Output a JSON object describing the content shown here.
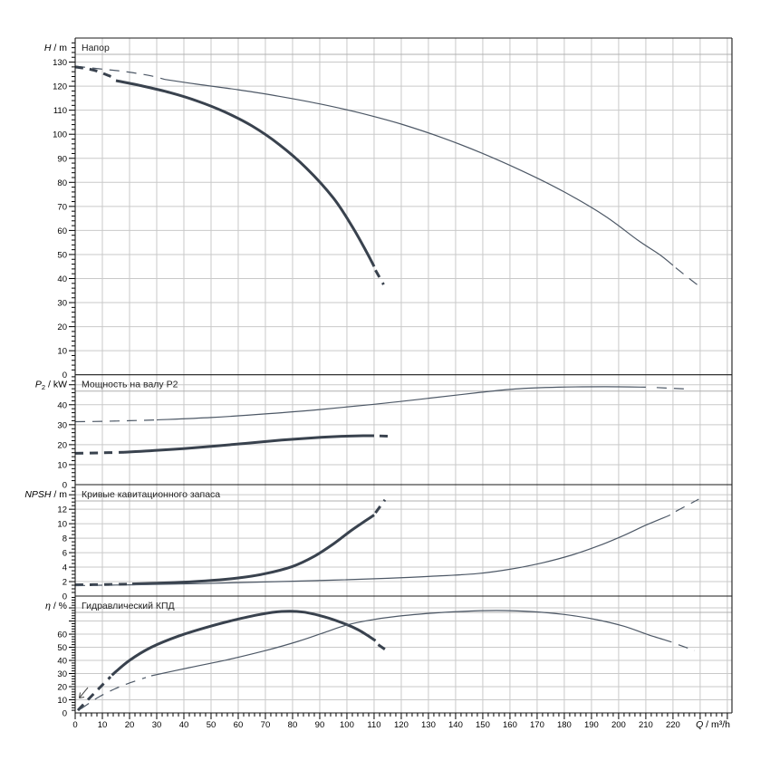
{
  "colors": {
    "background": "#ffffff",
    "curve_thick": "#39424e",
    "curve_thin": "#4d5866",
    "grid": "#c9c9c9",
    "strip_line": "#b0b0b0",
    "border": "#1a1a1a",
    "text": "#000000",
    "title_text": "#222222"
  },
  "xaxis": {
    "label": {
      "var": "Q",
      "rest": " / m³/h"
    },
    "ticks": [
      0,
      10,
      20,
      30,
      40,
      50,
      60,
      70,
      80,
      90,
      100,
      110,
      120,
      130,
      140,
      150,
      160,
      170,
      180,
      190,
      200,
      210,
      220
    ],
    "major_step": 10,
    "minor_step": 2,
    "range": [
      0,
      241.7
    ]
  },
  "chart_data": [
    {
      "type": "line",
      "panel": "head",
      "title": "Напор",
      "ylabel": {
        "var": "H",
        "rest": " / m"
      },
      "ylim": [
        0,
        140
      ],
      "yticks": [
        0,
        10,
        20,
        30,
        40,
        50,
        60,
        70,
        80,
        90,
        100,
        110,
        120,
        130
      ],
      "ytick_step": 10,
      "minor_step": 2,
      "series": [
        {
          "name": "head-curve-thin",
          "weight": "thin",
          "segments": [
            {
              "style": "dashed",
              "points": [
                [
                  0,
                  128.3
                ],
                [
                  9,
                  127.2
                ],
                [
                  18,
                  126.1
                ],
                [
                  27,
                  124.5
                ],
                [
                  33,
                  122.8
                ]
              ]
            },
            {
              "style": "solid",
              "points": [
                [
                  33,
                  122.8
                ],
                [
                  45,
                  120.8
                ],
                [
                  60,
                  118.5
                ],
                [
                  75,
                  115.8
                ],
                [
                  90,
                  112.6
                ],
                [
                  105,
                  108.8
                ],
                [
                  120,
                  104.2
                ],
                [
                  135,
                  98.6
                ],
                [
                  150,
                  92
                ],
                [
                  165,
                  84.5
                ],
                [
                  180,
                  76
                ],
                [
                  195,
                  66
                ],
                [
                  207,
                  56
                ],
                [
                  215,
                  50
                ],
                [
                  220,
                  45.5
                ]
              ]
            },
            {
              "style": "dashed",
              "points": [
                [
                  221,
                  44.5
                ],
                [
                  226,
                  40
                ],
                [
                  230,
                  36.5
                ]
              ]
            }
          ]
        },
        {
          "name": "head-curve-thick",
          "weight": "thick",
          "segments": [
            {
              "style": "dashed",
              "points": [
                [
                  0,
                  128
                ],
                [
                  7,
                  126.6
                ],
                [
                  14,
                  123.6
                ]
              ]
            },
            {
              "style": "solid",
              "points": [
                [
                  15,
                  122.3
                ],
                [
                  25,
                  120
                ],
                [
                  35,
                  117.3
                ],
                [
                  45,
                  113.8
                ],
                [
                  55,
                  109.3
                ],
                [
                  65,
                  103.5
                ],
                [
                  75,
                  95.8
                ],
                [
                  85,
                  86
                ],
                [
                  95,
                  73.5
                ],
                [
                  102,
                  61.5
                ],
                [
                  107,
                  51.5
                ],
                [
                  110,
                  45
                ]
              ]
            },
            {
              "style": "dashed",
              "points": [
                [
                  110.5,
                  43.5
                ],
                [
                  113.5,
                  37.5
                ]
              ]
            }
          ]
        }
      ]
    },
    {
      "type": "line",
      "panel": "power",
      "title": "Мощность на валу P2",
      "ylabel": {
        "var": "P",
        "sub": "2",
        "rest": " / kW"
      },
      "ylim": [
        0,
        55
      ],
      "yticks": [
        0,
        10,
        20,
        30,
        40
      ],
      "ytick_step": 10,
      "minor_step": 2,
      "series": [
        {
          "name": "power-curve-thin",
          "weight": "thin",
          "segments": [
            {
              "style": "dashed",
              "points": [
                [
                  0,
                  31.5
                ],
                [
                  10,
                  31.7
                ],
                [
                  20,
                  32
                ],
                [
                  30,
                  32.4
                ]
              ]
            },
            {
              "style": "solid",
              "points": [
                [
                  30,
                  32.4
                ],
                [
                  50,
                  33.6
                ],
                [
                  70,
                  35.4
                ],
                [
                  90,
                  37.6
                ],
                [
                  110,
                  40.2
                ],
                [
                  130,
                  43.2
                ],
                [
                  148,
                  46
                ],
                [
                  162,
                  47.9
                ],
                [
                  178,
                  48.8
                ],
                [
                  195,
                  49
                ],
                [
                  210,
                  48.8
                ]
              ]
            },
            {
              "style": "dashed",
              "points": [
                [
                  214,
                  48.6
                ],
                [
                  226,
                  47.8
                ]
              ]
            }
          ]
        },
        {
          "name": "power-curve-thick",
          "weight": "thick",
          "segments": [
            {
              "style": "dashed",
              "points": [
                [
                  0,
                  15.7
                ],
                [
                  9,
                  15.9
                ],
                [
                  18,
                  16.2
                ]
              ]
            },
            {
              "style": "solid",
              "points": [
                [
                  18,
                  16.2
                ],
                [
                  32,
                  17.3
                ],
                [
                  47,
                  18.8
                ],
                [
                  62,
                  20.6
                ],
                [
                  76,
                  22.3
                ],
                [
                  88,
                  23.5
                ],
                [
                  98,
                  24.2
                ],
                [
                  106,
                  24.5
                ],
                [
                  110,
                  24.5
                ]
              ]
            },
            {
              "style": "dashed",
              "points": [
                [
                  112,
                  24.4
                ],
                [
                  116,
                  24.2
                ]
              ]
            }
          ]
        }
      ]
    },
    {
      "type": "line",
      "panel": "npsh",
      "title": "Кривые кавитационного запаса",
      "ylabel": {
        "var": "NPSH",
        "rest": " / m"
      },
      "ylim": [
        0,
        15.4
      ],
      "yticks": [
        0,
        2,
        4,
        6,
        8,
        10,
        12
      ],
      "ytick_step": 2,
      "minor_step": 0.5,
      "series": [
        {
          "name": "npsh-curve-thick",
          "weight": "thick",
          "segments": [
            {
              "style": "dashed",
              "points": [
                [
                  0,
                  1.55
                ],
                [
                  11,
                  1.6
                ],
                [
                  21,
                  1.67
                ]
              ]
            },
            {
              "style": "solid",
              "points": [
                [
                  21,
                  1.67
                ],
                [
                  35,
                  1.85
                ],
                [
                  48,
                  2.1
                ],
                [
                  60,
                  2.5
                ],
                [
                  70,
                  3.1
                ],
                [
                  80,
                  4.1
                ],
                [
                  88,
                  5.5
                ],
                [
                  95,
                  7.2
                ],
                [
                  101,
                  8.9
                ],
                [
                  106,
                  10.2
                ],
                [
                  110,
                  11.2
                ]
              ]
            },
            {
              "style": "dashed",
              "points": [
                [
                  110.5,
                  11.5
                ],
                [
                  114,
                  13.3
                ]
              ]
            }
          ]
        },
        {
          "name": "npsh-curve-thin",
          "weight": "thin",
          "segments": [
            {
              "style": "dashed",
              "points": [
                [
                  0,
                  1.45
                ],
                [
                  10,
                  1.5
                ],
                [
                  20,
                  1.55
                ]
              ]
            },
            {
              "style": "solid",
              "points": [
                [
                  20,
                  1.55
                ],
                [
                  45,
                  1.72
                ],
                [
                  70,
                  1.95
                ],
                [
                  95,
                  2.2
                ],
                [
                  115,
                  2.45
                ],
                [
                  132,
                  2.75
                ],
                [
                  148,
                  3.1
                ],
                [
                  160,
                  3.7
                ],
                [
                  172,
                  4.6
                ],
                [
                  183,
                  5.7
                ],
                [
                  193,
                  7
                ],
                [
                  202,
                  8.4
                ],
                [
                  210,
                  9.8
                ],
                [
                  219,
                  11.2
                ]
              ]
            },
            {
              "style": "dashed",
              "points": [
                [
                  221,
                  11.7
                ],
                [
                  226,
                  12.7
                ],
                [
                  229.5,
                  13.4
                ]
              ]
            }
          ]
        }
      ]
    },
    {
      "type": "line",
      "panel": "efficiency",
      "title": "Гидравлический КПД",
      "ylabel": {
        "var": "η",
        "rest": " / %"
      },
      "ylim": [
        0,
        89
      ],
      "yticks": [
        0,
        10,
        20,
        30,
        40,
        50,
        60
      ],
      "ytick_step": 10,
      "minor_step": 2,
      "series": [
        {
          "name": "efficiency-curve-thick",
          "weight": "thick",
          "segments": [
            {
              "style": "dashed",
              "points": [
                [
                  1,
                  2
                ],
                [
                  7,
                  15
                ],
                [
                  13,
                  27.5
                ]
              ]
            },
            {
              "style": "solid",
              "points": [
                [
                  13.5,
                  28.8
                ],
                [
                  20,
                  40
                ],
                [
                  28,
                  50
                ],
                [
                  38,
                  58.5
                ],
                [
                  48,
                  65
                ],
                [
                  58,
                  70.5
                ],
                [
                  68,
                  75
                ],
                [
                  76,
                  77.3
                ],
                [
                  84,
                  76.8
                ],
                [
                  92,
                  73
                ],
                [
                  99,
                  68
                ],
                [
                  104,
                  63.5
                ],
                [
                  108,
                  58.5
                ],
                [
                  110.5,
                  55
                ]
              ]
            },
            {
              "style": "dashed",
              "points": [
                [
                  111.5,
                  52
                ],
                [
                  115,
                  47
                ]
              ]
            }
          ]
        },
        {
          "name": "efficiency-curve-thin",
          "weight": "thin",
          "segments": [
            {
              "style": "dashed",
              "points": [
                [
                  2,
                  3
                ],
                [
                  9,
                  12.5
                ],
                [
                  17,
                  20.5
                ],
                [
                  26,
                  27
                ]
              ]
            },
            {
              "style": "solid",
              "points": [
                [
                  28,
                  28.3
                ],
                [
                  42,
                  34.5
                ],
                [
                  56,
                  40.5
                ],
                [
                  70,
                  47.5
                ],
                [
                  82,
                  54.5
                ],
                [
                  92,
                  61.5
                ],
                [
                  100,
                  67
                ],
                [
                  108,
                  70.5
                ],
                [
                  118,
                  73.5
                ],
                [
                  130,
                  75.8
                ],
                [
                  142,
                  77.3
                ],
                [
                  155,
                  78
                ],
                [
                  168,
                  77.2
                ],
                [
                  180,
                  75
                ],
                [
                  192,
                  71
                ],
                [
                  202,
                  66
                ],
                [
                  211,
                  59.5
                ],
                [
                  219.5,
                  54
                ]
              ]
            },
            {
              "style": "dashed",
              "points": [
                [
                  222,
                  52
                ],
                [
                  228,
                  47.5
                ]
              ]
            }
          ]
        }
      ]
    }
  ]
}
